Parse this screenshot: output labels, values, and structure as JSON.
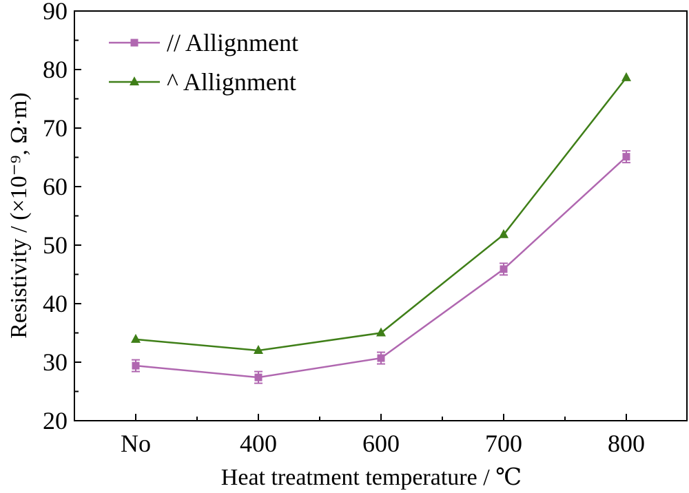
{
  "chart_data": {
    "type": "line",
    "xlabel": "Heat treatment temperature / ℃",
    "ylabel": "Resistivity / (×10⁻⁹, Ω·m)",
    "categories": [
      "No",
      "400",
      "600",
      "700",
      "800"
    ],
    "ylim": [
      20,
      90
    ],
    "yticks": [
      20,
      30,
      40,
      50,
      60,
      70,
      80,
      90
    ],
    "grid": false,
    "legend_position": "top-left",
    "series": [
      {
        "name": "// Allignment",
        "marker": "square",
        "color": "#b067b0",
        "values": [
          29.4,
          27.4,
          30.7,
          45.9,
          65.1
        ],
        "errors": [
          1.0,
          1.0,
          1.0,
          1.0,
          1.0
        ]
      },
      {
        "name": "^ Allignment",
        "marker": "triangle",
        "color": "#3f7f18",
        "values": [
          33.9,
          32.0,
          35.0,
          51.8,
          78.6
        ],
        "errors": [
          0,
          0,
          0,
          0,
          0
        ]
      }
    ]
  }
}
